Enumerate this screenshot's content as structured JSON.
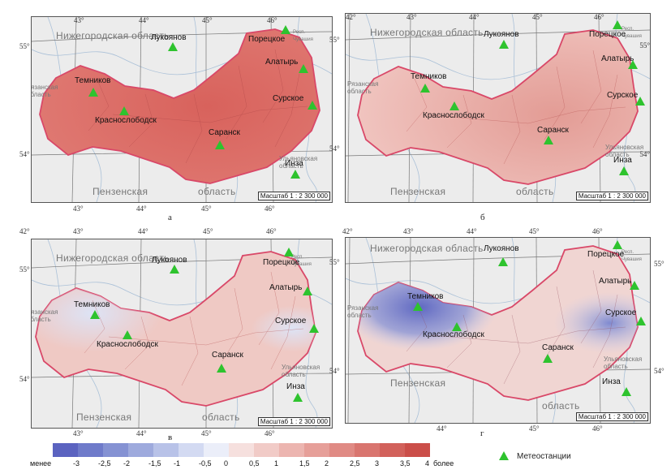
{
  "panels": [
    {
      "letter": "а",
      "lon_ticks_top": [
        "43°",
        "44°",
        "45°",
        "46°"
      ],
      "lon_ticks_bottom": [
        "43°",
        "44°",
        "45°",
        "46°"
      ],
      "lat_ticks": [
        "55°",
        "54°"
      ],
      "regions": {
        "nizh": "Нижегородская область",
        "ryaz": "Рязанская область",
        "penz": "Пензенская",
        "oblast": "область",
        "ulyan": "Ульяновская область",
        "resp": "Респ. Чувашия"
      },
      "scale": "Масштаб 1 : 2 300 000"
    },
    {
      "letter": "б",
      "lon_ticks_top": [
        "42°",
        "43°",
        "44°",
        "45°",
        "46°"
      ],
      "lon_ticks_bottom": [],
      "lat_ticks": [
        "55°",
        "54°"
      ],
      "right_lat_ticks": [
        "55°",
        "54°"
      ],
      "regions": {
        "nizh": "Нижегородская область",
        "ryaz": "Рязанская область",
        "penz": "Пензенская",
        "oblast": "область",
        "ulyan": "Ульяновская область",
        "resp": "Респ. Чувашия"
      },
      "scale": "Масштаб 1 : 2 300 000"
    },
    {
      "letter": "в",
      "lon_ticks_top": [
        "42°",
        "43°",
        "44°",
        "45°",
        "46°"
      ],
      "lon_ticks_bottom": [
        "43°",
        "44°",
        "45°",
        "46°"
      ],
      "lat_ticks": [
        "55°",
        "54°"
      ],
      "regions": {
        "nizh": "Нижегородская область",
        "ryaz": "Рязанская область",
        "penz": "Пензенская",
        "oblast": "область",
        "ulyan": "Ульяновская область",
        "resp": "Респ. Чувашия"
      },
      "scale": "Масштаб 1 : 2 300 000"
    },
    {
      "letter": "г",
      "lon_ticks_top": [
        "42°",
        "43°",
        "44°",
        "45°",
        "46°"
      ],
      "lon_ticks_bottom": [
        "44°",
        "45°",
        "46°"
      ],
      "lat_ticks": [
        "55°",
        "54°"
      ],
      "right_lat_ticks": [
        "55°",
        "54°"
      ],
      "regions": {
        "nizh": "Нижегородская область",
        "ryaz": "Рязанская область",
        "penz": "Пензенская",
        "oblast": "область",
        "ulyan": "Ульяновская область",
        "resp": "Респ. Чувашия"
      },
      "scale": "Масштаб 1 : 2 300 000"
    }
  ],
  "stations": [
    "Темников",
    "Краснослободск",
    "Саранск",
    "Лукоянов",
    "Порецкое",
    "Алатырь",
    "Сурское",
    "Инза"
  ],
  "legend": {
    "labels": [
      "менее",
      "-3",
      "-2,5",
      "-2",
      "-1,5",
      "-1",
      "-0,5",
      "0",
      "0,5",
      "1",
      "1,5",
      "2",
      "2,5",
      "3",
      "3,5",
      "4",
      "более"
    ],
    "colors": [
      "#5b63c0",
      "#6f7bca",
      "#8592d3",
      "#9eaadd",
      "#b8c2e8",
      "#d3daf2",
      "#ebeef9",
      "#f6e0de",
      "#f1cbc7",
      "#ecb5b0",
      "#e69f99",
      "#e08a84",
      "#d9756f",
      "#d2615b",
      "#cb4e49"
    ],
    "station_legend": "Метеостанции"
  },
  "colors": {
    "border_region": "#d94868",
    "grid": "#777777",
    "river": "#7fa6cc",
    "station": "#2ec32e"
  }
}
